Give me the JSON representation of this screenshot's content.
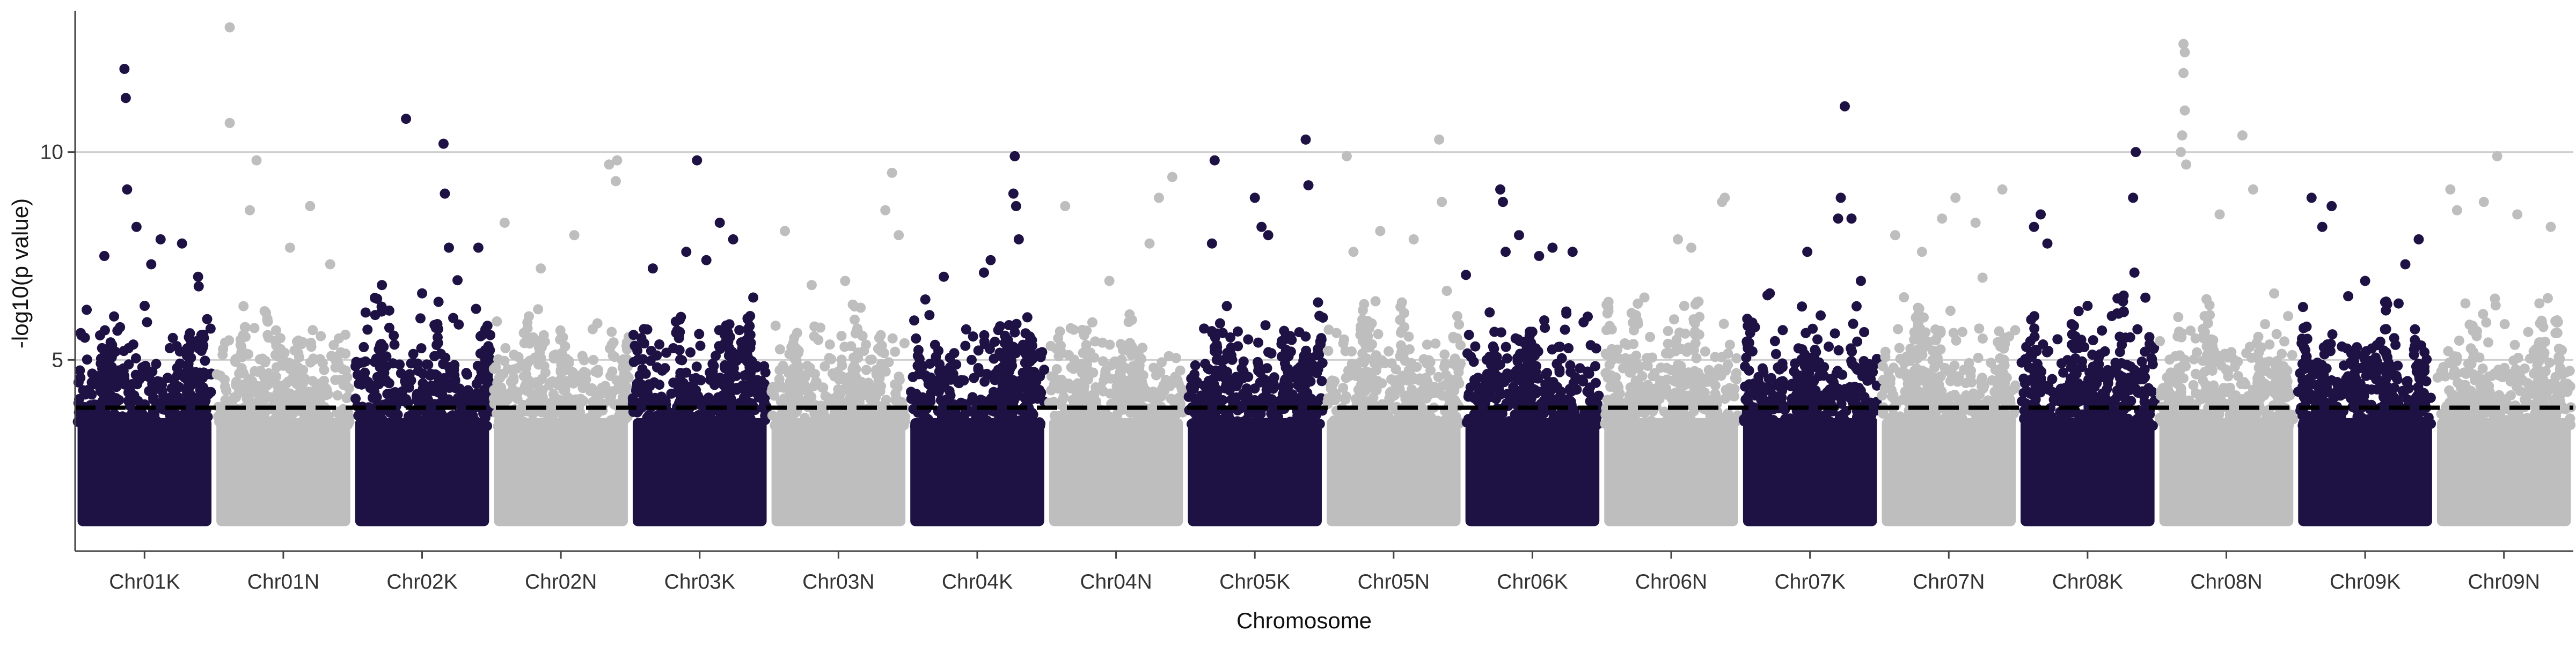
{
  "chart_data": {
    "type": "scatter",
    "subtype": "manhattan",
    "title": "",
    "xlabel": "Chromosome",
    "ylabel": "-log10(p value)",
    "ylim": [
      0.4,
      13.4
    ],
    "yticks": [
      5,
      10
    ],
    "threshold": 3.85,
    "grid": "horizontal major gridlines",
    "legend": "none",
    "colors": {
      "dark": "#1e1245",
      "light": "#bebebe",
      "grid": "#cfcfcf",
      "axis": "#444444",
      "threshold": "#000000"
    },
    "categories": [
      "Chr01K",
      "Chr01N",
      "Chr02K",
      "Chr02N",
      "Chr03K",
      "Chr03N",
      "Chr04K",
      "Chr04N",
      "Chr05K",
      "Chr05N",
      "Chr06K",
      "Chr06N",
      "Chr07K",
      "Chr07N",
      "Chr08K",
      "Chr08N",
      "Chr09K",
      "Chr09N"
    ],
    "series": [
      {
        "category": "Chr01K",
        "color": "dark",
        "peaks": [
          [
            0.35,
            12.0
          ],
          [
            0.36,
            11.3
          ],
          [
            0.37,
            9.1
          ],
          [
            0.44,
            8.2
          ],
          [
            0.2,
            7.5
          ],
          [
            0.62,
            7.9
          ],
          [
            0.78,
            7.8
          ],
          [
            0.9,
            7.0
          ],
          [
            0.55,
            7.3
          ]
        ]
      },
      {
        "category": "Chr01N",
        "color": "light",
        "peaks": [
          [
            0.1,
            13.0
          ],
          [
            0.1,
            10.7
          ],
          [
            0.3,
            9.8
          ],
          [
            0.25,
            8.6
          ],
          [
            0.55,
            7.7
          ],
          [
            0.7,
            8.7
          ],
          [
            0.85,
            7.3
          ]
        ]
      },
      {
        "category": "Chr02K",
        "color": "dark",
        "peaks": [
          [
            0.38,
            10.8
          ],
          [
            0.66,
            10.2
          ],
          [
            0.67,
            9.0
          ],
          [
            0.7,
            7.7
          ],
          [
            0.92,
            7.7
          ],
          [
            0.2,
            6.8
          ],
          [
            0.5,
            6.6
          ]
        ]
      },
      {
        "category": "Chr02N",
        "color": "light",
        "peaks": [
          [
            0.08,
            8.3
          ],
          [
            0.92,
            9.8
          ],
          [
            0.86,
            9.7
          ],
          [
            0.91,
            9.3
          ],
          [
            0.6,
            8.0
          ],
          [
            0.35,
            7.2
          ]
        ]
      },
      {
        "category": "Chr03K",
        "color": "dark",
        "peaks": [
          [
            0.48,
            9.8
          ],
          [
            0.65,
            8.3
          ],
          [
            0.75,
            7.9
          ],
          [
            0.4,
            7.6
          ],
          [
            0.55,
            7.4
          ],
          [
            0.15,
            7.2
          ],
          [
            0.9,
            6.5
          ]
        ]
      },
      {
        "category": "Chr03N",
        "color": "light",
        "peaks": [
          [
            0.9,
            9.5
          ],
          [
            0.85,
            8.6
          ],
          [
            0.95,
            8.0
          ],
          [
            0.1,
            8.1
          ],
          [
            0.55,
            6.9
          ],
          [
            0.3,
            6.8
          ]
        ]
      },
      {
        "category": "Chr04K",
        "color": "dark",
        "peaks": [
          [
            0.78,
            9.9
          ],
          [
            0.77,
            9.0
          ],
          [
            0.79,
            8.7
          ],
          [
            0.81,
            7.9
          ],
          [
            0.55,
            7.1
          ],
          [
            0.25,
            7.0
          ],
          [
            0.6,
            7.4
          ]
        ]
      },
      {
        "category": "Chr04N",
        "color": "light",
        "peaks": [
          [
            0.92,
            9.4
          ],
          [
            0.82,
            8.9
          ],
          [
            0.12,
            8.7
          ],
          [
            0.75,
            7.8
          ],
          [
            0.45,
            6.9
          ]
        ]
      },
      {
        "category": "Chr05K",
        "color": "dark",
        "peaks": [
          [
            0.2,
            9.8
          ],
          [
            0.88,
            10.3
          ],
          [
            0.5,
            8.9
          ],
          [
            0.9,
            9.2
          ],
          [
            0.55,
            8.2
          ],
          [
            0.6,
            8.0
          ],
          [
            0.18,
            7.8
          ]
        ]
      },
      {
        "category": "Chr05N",
        "color": "light",
        "peaks": [
          [
            0.15,
            9.9
          ],
          [
            0.84,
            10.3
          ],
          [
            0.86,
            8.8
          ],
          [
            0.4,
            8.1
          ],
          [
            0.65,
            7.9
          ],
          [
            0.2,
            7.6
          ]
        ]
      },
      {
        "category": "Chr06K",
        "color": "dark",
        "peaks": [
          [
            0.26,
            9.1
          ],
          [
            0.28,
            8.8
          ],
          [
            0.4,
            8.0
          ],
          [
            0.3,
            7.6
          ],
          [
            0.65,
            7.7
          ],
          [
            0.8,
            7.6
          ],
          [
            0.55,
            7.5
          ]
        ]
      },
      {
        "category": "Chr06N",
        "color": "light",
        "peaks": [
          [
            0.9,
            8.9
          ],
          [
            0.88,
            8.8
          ],
          [
            0.55,
            7.9
          ],
          [
            0.65,
            7.7
          ],
          [
            0.3,
            6.5
          ]
        ]
      },
      {
        "category": "Chr07K",
        "color": "dark",
        "peaks": [
          [
            0.76,
            11.1
          ],
          [
            0.73,
            8.9
          ],
          [
            0.71,
            8.4
          ],
          [
            0.81,
            8.4
          ],
          [
            0.48,
            7.6
          ],
          [
            0.88,
            6.9
          ],
          [
            0.2,
            6.6
          ]
        ]
      },
      {
        "category": "Chr07N",
        "color": "light",
        "peaks": [
          [
            0.9,
            9.1
          ],
          [
            0.55,
            8.9
          ],
          [
            0.45,
            8.4
          ],
          [
            0.1,
            8.0
          ],
          [
            0.7,
            8.3
          ],
          [
            0.3,
            7.6
          ]
        ]
      },
      {
        "category": "Chr08K",
        "color": "dark",
        "peaks": [
          [
            0.86,
            10.0
          ],
          [
            0.84,
            8.9
          ],
          [
            0.15,
            8.5
          ],
          [
            0.1,
            8.2
          ],
          [
            0.2,
            7.8
          ],
          [
            0.85,
            7.1
          ],
          [
            0.5,
            6.3
          ]
        ]
      },
      {
        "category": "Chr08N",
        "color": "light",
        "peaks": [
          [
            0.18,
            12.6
          ],
          [
            0.19,
            12.4
          ],
          [
            0.18,
            11.9
          ],
          [
            0.19,
            11.0
          ],
          [
            0.17,
            10.4
          ],
          [
            0.16,
            10.0
          ],
          [
            0.62,
            10.4
          ],
          [
            0.2,
            9.7
          ],
          [
            0.7,
            9.1
          ],
          [
            0.45,
            8.5
          ]
        ]
      },
      {
        "category": "Chr09K",
        "color": "dark",
        "peaks": [
          [
            0.1,
            8.9
          ],
          [
            0.25,
            8.7
          ],
          [
            0.18,
            8.2
          ],
          [
            0.9,
            7.9
          ],
          [
            0.8,
            7.3
          ],
          [
            0.5,
            6.9
          ]
        ]
      },
      {
        "category": "Chr09N",
        "color": "light",
        "peaks": [
          [
            0.45,
            9.9
          ],
          [
            0.1,
            9.1
          ],
          [
            0.15,
            8.6
          ],
          [
            0.35,
            8.8
          ],
          [
            0.6,
            8.5
          ],
          [
            0.85,
            8.2
          ]
        ]
      }
    ]
  }
}
